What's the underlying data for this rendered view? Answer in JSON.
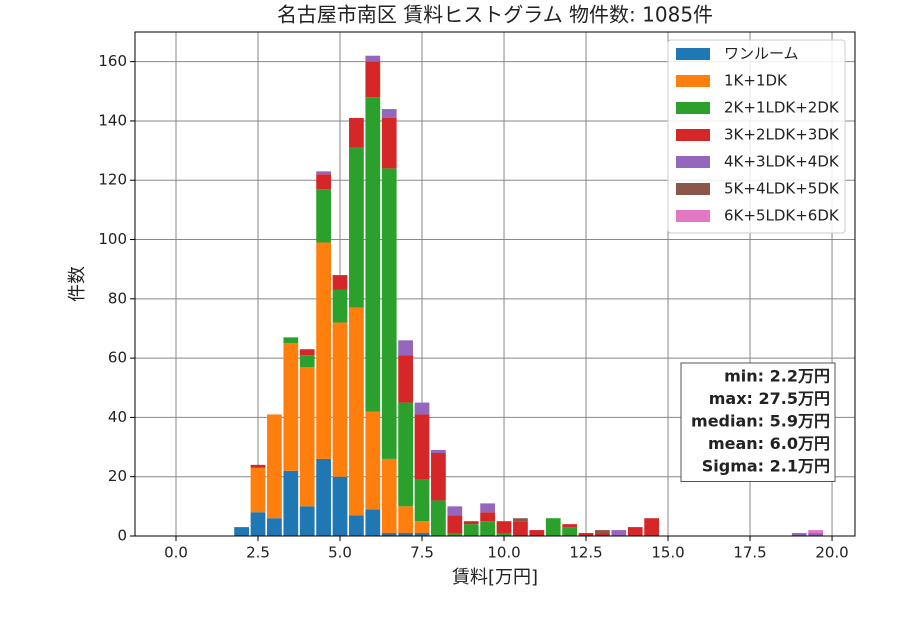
{
  "chart_data": {
    "type": "histogram",
    "title": "名古屋市南区 賃料ヒストグラム  物件数: 1085件",
    "x_label": "賃料[万円]",
    "y_label": "件数",
    "bins": [
      1.75,
      2.25,
      2.75,
      3.25,
      3.75,
      4.25,
      4.75,
      5.25,
      5.75,
      6.25,
      6.75,
      7.25,
      7.75,
      8.25,
      8.75,
      9.25,
      9.75,
      10.25,
      10.75,
      11.25,
      11.75,
      12.25,
      12.75,
      13.25,
      13.75,
      14.25,
      14.75,
      15.25,
      15.75,
      16.25,
      16.75,
      17.25,
      17.75,
      18.25,
      18.75,
      19.25,
      19.75,
      20.25
    ],
    "series": [
      {
        "name": "ワンルーム",
        "color": "#1f77b4",
        "values": [
          3,
          8,
          6,
          22,
          10,
          26,
          20,
          7,
          9,
          1,
          1,
          1,
          0,
          0,
          0,
          0,
          0,
          0,
          0,
          0,
          0,
          0,
          0,
          0,
          0,
          0,
          0,
          0,
          0,
          0,
          0,
          0,
          0,
          0,
          0,
          0,
          0
        ]
      },
      {
        "name": "1K+1DK",
        "color": "#ff7f0e",
        "values": [
          0,
          15,
          35,
          43,
          47,
          73,
          52,
          70,
          33,
          25,
          9,
          4,
          0,
          0,
          0,
          0,
          0,
          0,
          0,
          0,
          0,
          0,
          0,
          0,
          0,
          0,
          0,
          0,
          0,
          0,
          0,
          0,
          0,
          0,
          0,
          0,
          0
        ]
      },
      {
        "name": "2K+1LDK+2DK",
        "color": "#2ca02c",
        "values": [
          0,
          0,
          0,
          2,
          4,
          18,
          11,
          54,
          106,
          98,
          35,
          14,
          12,
          1,
          4,
          5,
          1,
          0,
          0,
          6,
          3,
          0,
          0,
          0,
          0,
          0,
          0,
          0,
          0,
          0,
          0,
          0,
          0,
          0,
          0,
          0,
          0
        ]
      },
      {
        "name": "3K+2LDK+3DK",
        "color": "#d62728",
        "values": [
          0,
          1,
          0,
          0,
          2,
          5,
          5,
          10,
          12,
          17,
          16,
          22,
          16,
          6,
          1,
          3,
          4,
          5,
          2,
          0,
          1,
          1,
          1,
          0,
          3,
          6,
          0,
          0,
          0,
          0,
          0,
          0,
          0,
          0,
          0,
          0,
          0
        ]
      },
      {
        "name": "4K+3LDK+4DK",
        "color": "#9467bd",
        "values": [
          0,
          0,
          0,
          0,
          0,
          1,
          0,
          0,
          2,
          3,
          5,
          4,
          1,
          3,
          0,
          3,
          0,
          0,
          0,
          0,
          0,
          0,
          0,
          2,
          0,
          0,
          0,
          0,
          0,
          0,
          0,
          0,
          0,
          0,
          1,
          1,
          0
        ]
      },
      {
        "name": "5K+4LDK+5DK",
        "color": "#8c564b",
        "values": [
          0,
          0,
          0,
          0,
          0,
          0,
          0,
          0,
          0,
          0,
          0,
          0,
          0,
          0,
          0,
          0,
          0,
          1,
          0,
          0,
          0,
          0,
          1,
          0,
          0,
          0,
          0,
          0,
          0,
          0,
          0,
          0,
          0,
          0,
          0,
          0,
          0
        ]
      },
      {
        "name": "6K+5LDK+6DK",
        "color": "#e377c2",
        "values": [
          0,
          0,
          0,
          0,
          0,
          0,
          0,
          0,
          0,
          0,
          0,
          0,
          0,
          0,
          0,
          0,
          0,
          0,
          0,
          0,
          0,
          0,
          0,
          0,
          0,
          0,
          0,
          0,
          0,
          0,
          0,
          0,
          0,
          0,
          0,
          1,
          0
        ]
      }
    ],
    "xlim": [
      -1.25,
      20.7
    ],
    "ylim": [
      0,
      170
    ],
    "xticks": [
      {
        "value": 0,
        "label": "0.0"
      },
      {
        "value": 2.5,
        "label": "2.5"
      },
      {
        "value": 5,
        "label": "5.0"
      },
      {
        "value": 7.5,
        "label": "7.5"
      },
      {
        "value": 10,
        "label": "10.0"
      },
      {
        "value": 12.5,
        "label": "12.5"
      },
      {
        "value": 15,
        "label": "15.0"
      },
      {
        "value": 17.5,
        "label": "17.5"
      },
      {
        "value": 20,
        "label": "20.0"
      }
    ],
    "yticks": [
      0,
      20,
      40,
      60,
      80,
      100,
      120,
      140,
      160
    ],
    "grid": true,
    "legend": "upper right",
    "annotations": [
      "min: 2.2万円",
      "max: 27.5万円",
      "median: 5.9万円",
      "mean: 6.0万円",
      "Sigma: 2.1万円"
    ]
  }
}
